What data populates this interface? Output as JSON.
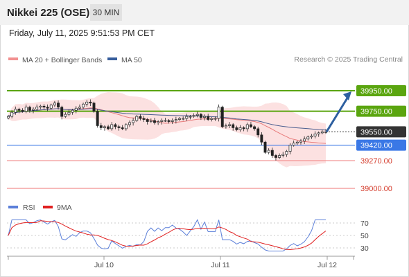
{
  "header": {
    "title": "Nikkei 225 (OSE)",
    "timeframe": "30 MIN",
    "datetime": "Friday, July 11, 2025 9:51:53 PM CET",
    "credit": "Research © 2025 Trading Central"
  },
  "colors": {
    "green": "#5aa50f",
    "blue": "#3a78e6",
    "red": "#f29090",
    "candle_up": "#ffffff",
    "candle_down": "#222222",
    "bollinger_fill": "#fbdcdc",
    "ma50": "#4a5d8f",
    "arrow": "#2d5fa0",
    "current_badge": "#333333",
    "rsi": "#5b7fd9",
    "rsi_ma": "#e02020"
  },
  "chart_data": [
    {
      "type": "candlestick",
      "legend": [
        {
          "label": "MA 20 + Bollinger Bands",
          "color": "#f29090"
        },
        {
          "label": "MA 50",
          "color": "#365d9c"
        }
      ],
      "x_ticks": [
        "Jul 10",
        "Jul 11",
        "Jul 12"
      ],
      "ylim": [
        38940,
        40030
      ],
      "current_price": 39550,
      "levels": [
        {
          "value": 39950,
          "label": "39950.00",
          "type": "resistance",
          "color": "#5aa50f"
        },
        {
          "value": 39750,
          "label": "39750.00",
          "type": "resistance",
          "color": "#5aa50f"
        },
        {
          "value": 39550,
          "label": "39550.00",
          "type": "current",
          "color": "#333333"
        },
        {
          "value": 39420,
          "label": "39420.00",
          "type": "pivot",
          "color": "#3a78e6"
        },
        {
          "value": 39270,
          "label": "39270.00",
          "type": "support",
          "color": "#f29090"
        },
        {
          "value": 39000,
          "label": "39000.00",
          "type": "support",
          "color": "#f29090"
        }
      ],
      "close_series": [
        39700,
        39740,
        39770,
        39760,
        39750,
        39790,
        39760,
        39770,
        39790,
        39800,
        39790,
        39780,
        39810,
        39830,
        39790,
        39700,
        39720,
        39740,
        39760,
        39780,
        39790,
        39820,
        39840,
        39830,
        39750,
        39610,
        39590,
        39600,
        39580,
        39620,
        39600,
        39590,
        39580,
        39620,
        39640,
        39660,
        39700,
        39680,
        39670,
        39650,
        39660,
        39640,
        39650,
        39660,
        39660,
        39650,
        39660,
        39670,
        39680,
        39680,
        39700,
        39700,
        39710,
        39720,
        39690,
        39700,
        39670,
        39680,
        39680,
        39790,
        39600,
        39610,
        39620,
        39590,
        39570,
        39590,
        39580,
        39620,
        39600,
        39580,
        39520,
        39450,
        39350,
        39370,
        39320,
        39300,
        39320,
        39330,
        39360,
        39420,
        39440,
        39450,
        39460,
        39480,
        39500,
        39510,
        39530,
        39540,
        39550,
        39550
      ],
      "trajectory": {
        "from": 39550,
        "to": 39950
      }
    },
    {
      "type": "line",
      "legend": [
        {
          "label": "RSI",
          "color": "#5b7fd9"
        },
        {
          "label": "9MA",
          "color": "#e02020"
        }
      ],
      "y_ticks": [
        70,
        50,
        30
      ],
      "ylim": [
        20,
        80
      ]
    }
  ]
}
